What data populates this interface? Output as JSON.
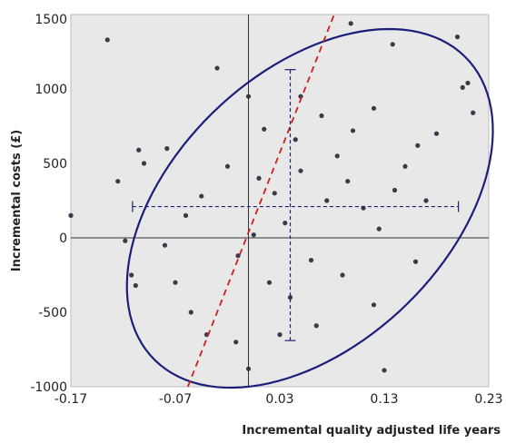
{
  "chart_data": {
    "type": "scatter",
    "xlabel": "Incremental quality adjusted life years",
    "ylabel": "Incremental costs (£)",
    "xlim": [
      -0.17,
      0.23
    ],
    "ylim": [
      -1000,
      1500
    ],
    "xticks": [
      -0.17,
      -0.07,
      0.03,
      0.13,
      0.23
    ],
    "xtick_labels": [
      "-0.17",
      "-0.07",
      "0.03",
      "0.13",
      "0.23"
    ],
    "yticks": [
      -1000,
      -500,
      0,
      500,
      1000,
      1500
    ],
    "ytick_labels": [
      "-1000",
      "-500",
      "0",
      "500",
      "1000",
      "1500"
    ],
    "grid": false,
    "plot_background": "#e8e8e8",
    "point_color": "#3a3a4a",
    "ellipse_color": "#1c1f7a",
    "threshold_color": "#cc1f1f",
    "reference_lines": {
      "x": 0,
      "y": 0
    },
    "mean_point": {
      "x": 0.04,
      "y": 210
    },
    "error_bars": {
      "x_range": [
        -0.111,
        0.201
      ],
      "y_range": [
        -690,
        1130
      ],
      "style": "dashed"
    },
    "confidence_ellipse": {
      "center": {
        "x": 0.0588,
        "y": 198
      },
      "semi_major_qaly": 0.1483,
      "semi_major_cost": 1020,
      "semi_minor_qaly": 0.0932,
      "semi_minor_cost": -641
    },
    "threshold_line": {
      "style": "dashed",
      "points": [
        {
          "x": -0.058,
          "y": -1000
        },
        {
          "x": 0.082,
          "y": 1500
        }
      ]
    },
    "points": [
      {
        "x": -0.17,
        "y": 150
      },
      {
        "x": -0.135,
        "y": 1330
      },
      {
        "x": -0.125,
        "y": 380
      },
      {
        "x": -0.118,
        "y": -20
      },
      {
        "x": -0.112,
        "y": -250
      },
      {
        "x": -0.108,
        "y": -320
      },
      {
        "x": -0.105,
        "y": 590
      },
      {
        "x": -0.1,
        "y": 500
      },
      {
        "x": -0.078,
        "y": 600
      },
      {
        "x": -0.055,
        "y": -500
      },
      {
        "x": 0.098,
        "y": 1440
      },
      {
        "x": 0.2,
        "y": 1350
      },
      {
        "x": 0.21,
        "y": 1040
      },
      {
        "x": 0.138,
        "y": 1300
      },
      {
        "x": 0.16,
        "y": -160
      },
      {
        "x": 0.13,
        "y": -890
      },
      {
        "x": 0.0,
        "y": -880
      },
      {
        "x": -0.012,
        "y": -700
      },
      {
        "x": 0.03,
        "y": -650
      },
      {
        "x": 0.065,
        "y": -590
      },
      {
        "x": 0.205,
        "y": 1010
      },
      {
        "x": 0.215,
        "y": 840
      },
      {
        "x": 0.12,
        "y": 870
      },
      {
        "x": 0.162,
        "y": 620
      },
      {
        "x": -0.03,
        "y": 1140
      },
      {
        "x": 0.015,
        "y": 730
      },
      {
        "x": 0.045,
        "y": 660
      },
      {
        "x": -0.02,
        "y": 480
      },
      {
        "x": -0.045,
        "y": 280
      },
      {
        "x": -0.06,
        "y": 150
      },
      {
        "x": -0.08,
        "y": -50
      },
      {
        "x": -0.07,
        "y": -300
      },
      {
        "x": -0.04,
        "y": -650
      },
      {
        "x": 0.01,
        "y": 400
      },
      {
        "x": 0.025,
        "y": 300
      },
      {
        "x": 0.035,
        "y": 100
      },
      {
        "x": 0.05,
        "y": 450
      },
      {
        "x": 0.06,
        "y": -150
      },
      {
        "x": 0.075,
        "y": 250
      },
      {
        "x": 0.085,
        "y": 550
      },
      {
        "x": 0.095,
        "y": 380
      },
      {
        "x": 0.11,
        "y": 200
      },
      {
        "x": 0.125,
        "y": 60
      },
      {
        "x": 0.14,
        "y": 320
      },
      {
        "x": 0.15,
        "y": 480
      },
      {
        "x": 0.17,
        "y": 250
      },
      {
        "x": 0.18,
        "y": 700
      },
      {
        "x": 0.02,
        "y": -300
      },
      {
        "x": -0.01,
        "y": -120
      },
      {
        "x": 0.005,
        "y": 20
      },
      {
        "x": 0.04,
        "y": -400
      },
      {
        "x": 0.09,
        "y": -250
      },
      {
        "x": 0.12,
        "y": -450
      },
      {
        "x": 0.0,
        "y": 950
      },
      {
        "x": 0.05,
        "y": 950
      },
      {
        "x": 0.07,
        "y": 820
      },
      {
        "x": 0.1,
        "y": 720
      }
    ]
  }
}
